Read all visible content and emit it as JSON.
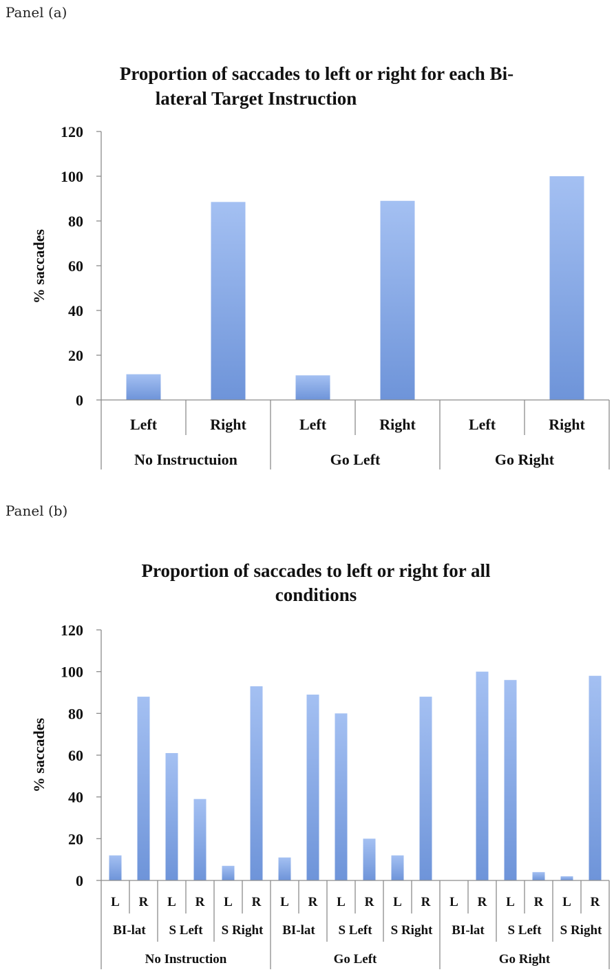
{
  "panels": [
    {
      "label": "Panel (a)"
    },
    {
      "label": "Panel (b)"
    }
  ],
  "chart_data": [
    {
      "type": "bar",
      "title_lines": [
        "Proportion of saccades to left or right for each Bi-",
        "lateral Target Instruction"
      ],
      "ylabel": "% saccades",
      "ylim": [
        0,
        120
      ],
      "yticks": [
        "0",
        "20",
        "40",
        "60",
        "80",
        "100",
        "120"
      ],
      "categories": [
        {
          "group": "No Instructuion",
          "label": "Left",
          "value": 11.5
        },
        {
          "group": "No Instructuion",
          "label": "Right",
          "value": 88.5
        },
        {
          "group": "Go Left",
          "label": "Left",
          "value": 11
        },
        {
          "group": "Go Left",
          "label": "Right",
          "value": 89
        },
        {
          "group": "Go Right",
          "label": "Left",
          "value": 0
        },
        {
          "group": "Go Right",
          "label": "Right",
          "value": 100
        }
      ],
      "groups": [
        "No Instructuion",
        "Go Left",
        "Go Right"
      ],
      "bar_color": "#a4c0f2",
      "bar_color_dark": "#6e94d9"
    },
    {
      "type": "bar",
      "title_lines": [
        "Proportion of saccades to left or right for all",
        "conditions"
      ],
      "ylabel": "% saccades",
      "ylim": [
        0,
        120
      ],
      "yticks": [
        "0",
        "20",
        "40",
        "60",
        "80",
        "100",
        "120"
      ],
      "level1": [
        "L",
        "R",
        "L",
        "R",
        "L",
        "R",
        "L",
        "R",
        "L",
        "R",
        "L",
        "R",
        "L",
        "R",
        "L",
        "R",
        "L",
        "R"
      ],
      "level2": [
        "BI-lat",
        "S Left",
        "S Right",
        "BI-lat",
        "S Left",
        "S Right",
        "BI-lat",
        "S Left",
        "S Right"
      ],
      "groups": [
        "No Instruction",
        "Go Left",
        "Go Right"
      ],
      "values": [
        12,
        88,
        61,
        39,
        7,
        93,
        11,
        89,
        80,
        20,
        12,
        88,
        0,
        100,
        96,
        4,
        2,
        98
      ],
      "bar_color": "#a4c0f2",
      "bar_color_dark": "#6e94d9"
    }
  ]
}
